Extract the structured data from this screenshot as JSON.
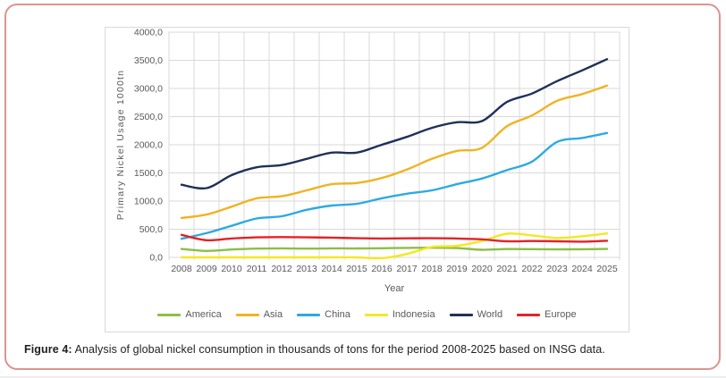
{
  "figure": {
    "caption_label": "Figure 4:",
    "caption_text": " Analysis of global nickel consumption in thousands of tons for the period 2008-2025 based on INSG data."
  },
  "colors": {
    "figure_border": "#DC9490",
    "chart_border": "#D9D9D9",
    "gridline": "#D9D9D9",
    "axis_text": "#595959",
    "caption_text": "#1F1F1F"
  },
  "chart_data": {
    "type": "line",
    "title": "",
    "xlabel": "Year",
    "ylabel": "Primary Nickel Usage 1000tn",
    "x": [
      "2008",
      "2009",
      "2010",
      "2011",
      "2012",
      "2013",
      "2014",
      "2015",
      "2016",
      "2017",
      "2018",
      "2019",
      "2020",
      "2021",
      "2022",
      "2023",
      "2024",
      "2025"
    ],
    "ylim": [
      0,
      4000
    ],
    "ytick_step": 500,
    "ytick_format": "comma-decimal",
    "grid": true,
    "legend_position": "bottom",
    "series": [
      {
        "name": "America",
        "color": "#8CBE46",
        "values": [
          150,
          115,
          140,
          155,
          160,
          155,
          160,
          158,
          162,
          168,
          172,
          165,
          135,
          148,
          146,
          142,
          145,
          150
        ]
      },
      {
        "name": "Asia",
        "color": "#F0B323",
        "values": [
          700,
          760,
          900,
          1050,
          1085,
          1190,
          1300,
          1320,
          1410,
          1560,
          1750,
          1890,
          1945,
          2330,
          2520,
          2780,
          2900,
          3050
        ]
      },
      {
        "name": "China",
        "color": "#2DAAE1",
        "values": [
          330,
          430,
          560,
          690,
          730,
          845,
          920,
          950,
          1050,
          1130,
          1190,
          1300,
          1400,
          1550,
          1700,
          2050,
          2120,
          2210
        ]
      },
      {
        "name": "Indonesia",
        "color": "#F3E822",
        "values": [
          0,
          0,
          0,
          0,
          0,
          0,
          0,
          0,
          -15,
          60,
          185,
          205,
          290,
          420,
          390,
          345,
          375,
          425
        ]
      },
      {
        "name": "World",
        "color": "#1F3157",
        "values": [
          1290,
          1230,
          1460,
          1600,
          1640,
          1750,
          1860,
          1860,
          2000,
          2140,
          2300,
          2400,
          2420,
          2760,
          2910,
          3130,
          3320,
          3520
        ]
      },
      {
        "name": "Europe",
        "color": "#E32227",
        "values": [
          400,
          305,
          335,
          355,
          360,
          355,
          350,
          340,
          335,
          338,
          340,
          335,
          320,
          285,
          290,
          285,
          280,
          295
        ]
      }
    ]
  }
}
